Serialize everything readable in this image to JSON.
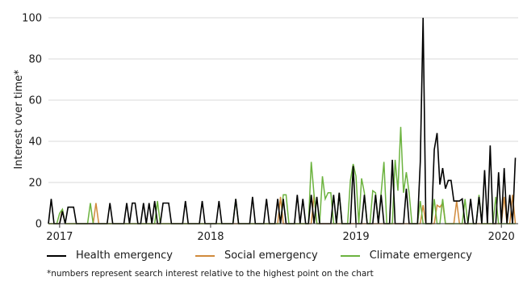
{
  "chart_data": {
    "type": "line",
    "ylabel": "Interest over time*",
    "xlabel": "",
    "ylim": [
      0,
      100
    ],
    "yticks": [
      0,
      20,
      40,
      60,
      80,
      100
    ],
    "xlim": [
      "2016-11-27",
      "2020-02-16"
    ],
    "xticks": [
      {
        "label": "2017",
        "date": "2016-12-25"
      },
      {
        "label": "2018",
        "date": "2018-01-07"
      },
      {
        "label": "2019",
        "date": "2019-01-06"
      },
      {
        "label": "2020",
        "date": "2020-01-05"
      }
    ],
    "grid": "horizontal",
    "legend_position": "bottom",
    "series": [
      {
        "name": "Health emergency",
        "color": "#000000",
        "points": [
          [
            "2016-11-27",
            0
          ],
          [
            "2016-12-04",
            12
          ],
          [
            "2016-12-11",
            0
          ],
          [
            "2016-12-18",
            0
          ],
          [
            "2016-12-25",
            0
          ],
          [
            "2017-01-01",
            6
          ],
          [
            "2017-01-08",
            0
          ],
          [
            "2017-01-15",
            8
          ],
          [
            "2017-01-22",
            8
          ],
          [
            "2017-01-29",
            8
          ],
          [
            "2017-02-05",
            0
          ],
          [
            "2017-02-12",
            0
          ],
          [
            "2017-02-19",
            0
          ],
          [
            "2017-02-26",
            0
          ],
          [
            "2017-03-05",
            0
          ],
          [
            "2017-03-12",
            0
          ],
          [
            "2017-03-19",
            0
          ],
          [
            "2017-03-26",
            0
          ],
          [
            "2017-04-02",
            0
          ],
          [
            "2017-04-09",
            0
          ],
          [
            "2017-04-16",
            0
          ],
          [
            "2017-04-23",
            0
          ],
          [
            "2017-04-30",
            10
          ],
          [
            "2017-05-07",
            0
          ],
          [
            "2017-05-14",
            0
          ],
          [
            "2017-05-21",
            0
          ],
          [
            "2017-05-28",
            0
          ],
          [
            "2017-06-04",
            0
          ],
          [
            "2017-06-11",
            10
          ],
          [
            "2017-06-18",
            0
          ],
          [
            "2017-06-25",
            10
          ],
          [
            "2017-07-02",
            10
          ],
          [
            "2017-07-09",
            0
          ],
          [
            "2017-07-16",
            0
          ],
          [
            "2017-07-23",
            10
          ],
          [
            "2017-07-30",
            0
          ],
          [
            "2017-08-06",
            10
          ],
          [
            "2017-08-13",
            0
          ],
          [
            "2017-08-20",
            11
          ],
          [
            "2017-08-27",
            0
          ],
          [
            "2017-09-03",
            0
          ],
          [
            "2017-09-10",
            10
          ],
          [
            "2017-09-17",
            10
          ],
          [
            "2017-09-24",
            10
          ],
          [
            "2017-10-01",
            0
          ],
          [
            "2017-10-08",
            0
          ],
          [
            "2017-10-15",
            0
          ],
          [
            "2017-10-22",
            0
          ],
          [
            "2017-10-29",
            0
          ],
          [
            "2017-11-05",
            11
          ],
          [
            "2017-11-12",
            0
          ],
          [
            "2017-11-19",
            0
          ],
          [
            "2017-11-26",
            0
          ],
          [
            "2017-12-03",
            0
          ],
          [
            "2017-12-10",
            0
          ],
          [
            "2017-12-17",
            11
          ],
          [
            "2017-12-24",
            0
          ],
          [
            "2017-12-31",
            0
          ],
          [
            "2018-01-07",
            0
          ],
          [
            "2018-01-14",
            0
          ],
          [
            "2018-01-21",
            0
          ],
          [
            "2018-01-28",
            11
          ],
          [
            "2018-02-04",
            0
          ],
          [
            "2018-02-11",
            0
          ],
          [
            "2018-02-18",
            0
          ],
          [
            "2018-02-25",
            0
          ],
          [
            "2018-03-04",
            0
          ],
          [
            "2018-03-11",
            12
          ],
          [
            "2018-03-18",
            0
          ],
          [
            "2018-03-25",
            0
          ],
          [
            "2018-04-01",
            0
          ],
          [
            "2018-04-08",
            0
          ],
          [
            "2018-04-15",
            0
          ],
          [
            "2018-04-22",
            13
          ],
          [
            "2018-04-29",
            0
          ],
          [
            "2018-05-06",
            0
          ],
          [
            "2018-05-13",
            0
          ],
          [
            "2018-05-20",
            0
          ],
          [
            "2018-05-27",
            12
          ],
          [
            "2018-06-03",
            0
          ],
          [
            "2018-06-10",
            0
          ],
          [
            "2018-06-17",
            0
          ],
          [
            "2018-06-24",
            12
          ],
          [
            "2018-07-01",
            0
          ],
          [
            "2018-07-08",
            12
          ],
          [
            "2018-07-15",
            0
          ],
          [
            "2018-07-22",
            0
          ],
          [
            "2018-07-29",
            0
          ],
          [
            "2018-08-05",
            0
          ],
          [
            "2018-08-12",
            14
          ],
          [
            "2018-08-19",
            0
          ],
          [
            "2018-08-26",
            12
          ],
          [
            "2018-09-02",
            0
          ],
          [
            "2018-09-09",
            0
          ],
          [
            "2018-09-16",
            14
          ],
          [
            "2018-09-23",
            0
          ],
          [
            "2018-09-30",
            13
          ],
          [
            "2018-10-07",
            0
          ],
          [
            "2018-10-14",
            0
          ],
          [
            "2018-10-21",
            0
          ],
          [
            "2018-10-28",
            0
          ],
          [
            "2018-11-04",
            0
          ],
          [
            "2018-11-11",
            14
          ],
          [
            "2018-11-18",
            0
          ],
          [
            "2018-11-25",
            15
          ],
          [
            "2018-12-02",
            0
          ],
          [
            "2018-12-09",
            0
          ],
          [
            "2018-12-16",
            0
          ],
          [
            "2018-12-23",
            0
          ],
          [
            "2018-12-30",
            28
          ],
          [
            "2019-01-06",
            0
          ],
          [
            "2019-01-13",
            0
          ],
          [
            "2019-01-20",
            0
          ],
          [
            "2019-01-27",
            14
          ],
          [
            "2019-02-03",
            0
          ],
          [
            "2019-02-10",
            0
          ],
          [
            "2019-02-17",
            0
          ],
          [
            "2019-02-24",
            14
          ],
          [
            "2019-03-03",
            0
          ],
          [
            "2019-03-10",
            14
          ],
          [
            "2019-03-17",
            0
          ],
          [
            "2019-03-24",
            0
          ],
          [
            "2019-03-31",
            0
          ],
          [
            "2019-04-07",
            31
          ],
          [
            "2019-04-14",
            0
          ],
          [
            "2019-04-21",
            0
          ],
          [
            "2019-04-28",
            0
          ],
          [
            "2019-05-05",
            0
          ],
          [
            "2019-05-12",
            17
          ],
          [
            "2019-05-19",
            0
          ],
          [
            "2019-05-26",
            0
          ],
          [
            "2019-06-02",
            0
          ],
          [
            "2019-06-09",
            0
          ],
          [
            "2019-06-16",
            30
          ],
          [
            "2019-06-23",
            100
          ],
          [
            "2019-06-30",
            0
          ],
          [
            "2019-07-07",
            0
          ],
          [
            "2019-07-14",
            0
          ],
          [
            "2019-07-21",
            36
          ],
          [
            "2019-07-28",
            44
          ],
          [
            "2019-08-04",
            19
          ],
          [
            "2019-08-11",
            27
          ],
          [
            "2019-08-18",
            17
          ],
          [
            "2019-08-25",
            21
          ],
          [
            "2019-09-01",
            21
          ],
          [
            "2019-09-08",
            11
          ],
          [
            "2019-09-15",
            11
          ],
          [
            "2019-09-22",
            11
          ],
          [
            "2019-09-29",
            12
          ],
          [
            "2019-10-06",
            0
          ],
          [
            "2019-10-13",
            0
          ],
          [
            "2019-10-20",
            12
          ],
          [
            "2019-10-27",
            0
          ],
          [
            "2019-11-03",
            0
          ],
          [
            "2019-11-10",
            13
          ],
          [
            "2019-11-17",
            0
          ],
          [
            "2019-11-24",
            26
          ],
          [
            "2019-12-01",
            0
          ],
          [
            "2019-12-08",
            38
          ],
          [
            "2019-12-15",
            0
          ],
          [
            "2019-12-22",
            0
          ],
          [
            "2019-12-29",
            25
          ],
          [
            "2020-01-05",
            0
          ],
          [
            "2020-01-12",
            27
          ],
          [
            "2020-01-19",
            0
          ],
          [
            "2020-01-26",
            14
          ],
          [
            "2020-02-02",
            0
          ],
          [
            "2020-02-09",
            32
          ]
        ]
      },
      {
        "name": "Social emergency",
        "color": "#d08a3c",
        "points": [
          [
            "2016-11-27",
            0
          ],
          [
            "2016-12-25",
            0
          ],
          [
            "2017-01-01",
            7
          ],
          [
            "2017-01-08",
            0
          ],
          [
            "2017-03-19",
            0
          ],
          [
            "2017-03-26",
            10
          ],
          [
            "2017-04-02",
            0
          ],
          [
            "2018-06-24",
            0
          ],
          [
            "2018-07-01",
            13
          ],
          [
            "2018-07-08",
            0
          ],
          [
            "2018-09-16",
            0
          ],
          [
            "2018-09-23",
            14
          ],
          [
            "2018-09-30",
            0
          ],
          [
            "2019-06-16",
            0
          ],
          [
            "2019-06-23",
            9
          ],
          [
            "2019-06-30",
            0
          ],
          [
            "2019-07-21",
            0
          ],
          [
            "2019-07-28",
            9
          ],
          [
            "2019-08-04",
            8
          ],
          [
            "2019-08-11",
            10
          ],
          [
            "2019-08-18",
            0
          ],
          [
            "2019-09-08",
            0
          ],
          [
            "2019-09-15",
            11
          ],
          [
            "2019-09-22",
            0
          ],
          [
            "2020-01-05",
            0
          ],
          [
            "2020-01-12",
            13
          ],
          [
            "2020-01-19",
            0
          ],
          [
            "2020-01-26",
            0
          ],
          [
            "2020-02-02",
            14
          ],
          [
            "2020-02-09",
            0
          ]
        ]
      },
      {
        "name": "Climate emergency",
        "color": "#6cb33f",
        "points": [
          [
            "2016-11-27",
            0
          ],
          [
            "2016-12-18",
            0
          ],
          [
            "2016-12-25",
            5
          ],
          [
            "2017-01-01",
            7
          ],
          [
            "2017-01-08",
            0
          ],
          [
            "2017-03-05",
            0
          ],
          [
            "2017-03-12",
            10
          ],
          [
            "2017-03-19",
            0
          ],
          [
            "2017-08-20",
            0
          ],
          [
            "2017-08-27",
            11
          ],
          [
            "2017-09-03",
            0
          ],
          [
            "2018-03-04",
            0
          ],
          [
            "2018-03-11",
            12
          ],
          [
            "2018-03-18",
            0
          ],
          [
            "2018-07-01",
            0
          ],
          [
            "2018-07-08",
            14
          ],
          [
            "2018-07-15",
            14
          ],
          [
            "2018-07-22",
            0
          ],
          [
            "2018-09-09",
            0
          ],
          [
            "2018-09-16",
            30
          ],
          [
            "2018-09-23",
            14
          ],
          [
            "2018-09-30",
            0
          ],
          [
            "2018-10-07",
            0
          ],
          [
            "2018-10-14",
            23
          ],
          [
            "2018-10-21",
            12
          ],
          [
            "2018-10-28",
            15
          ],
          [
            "2018-11-04",
            15
          ],
          [
            "2018-11-11",
            0
          ],
          [
            "2018-11-18",
            0
          ],
          [
            "2018-11-25",
            15
          ],
          [
            "2018-12-02",
            0
          ],
          [
            "2018-12-09",
            0
          ],
          [
            "2018-12-16",
            0
          ],
          [
            "2018-12-23",
            21
          ],
          [
            "2018-12-30",
            29
          ],
          [
            "2019-01-06",
            23
          ],
          [
            "2019-01-13",
            0
          ],
          [
            "2019-01-20",
            22
          ],
          [
            "2019-01-27",
            15
          ],
          [
            "2019-02-03",
            0
          ],
          [
            "2019-02-10",
            0
          ],
          [
            "2019-02-17",
            16
          ],
          [
            "2019-02-24",
            15
          ],
          [
            "2019-03-03",
            0
          ],
          [
            "2019-03-10",
            15
          ],
          [
            "2019-03-17",
            30
          ],
          [
            "2019-03-24",
            0
          ],
          [
            "2019-03-31",
            0
          ],
          [
            "2019-04-07",
            0
          ],
          [
            "2019-04-14",
            31
          ],
          [
            "2019-04-21",
            16
          ],
          [
            "2019-04-28",
            47
          ],
          [
            "2019-05-05",
            15
          ],
          [
            "2019-05-12",
            25
          ],
          [
            "2019-05-19",
            15
          ],
          [
            "2019-05-26",
            0
          ],
          [
            "2019-06-02",
            0
          ],
          [
            "2019-06-09",
            0
          ],
          [
            "2019-06-16",
            11
          ],
          [
            "2019-06-23",
            0
          ],
          [
            "2019-06-30",
            0
          ],
          [
            "2019-07-07",
            0
          ],
          [
            "2019-07-14",
            0
          ],
          [
            "2019-07-21",
            12
          ],
          [
            "2019-07-28",
            0
          ],
          [
            "2019-08-04",
            0
          ],
          [
            "2019-08-11",
            12
          ],
          [
            "2019-08-18",
            0
          ],
          [
            "2019-09-29",
            0
          ],
          [
            "2019-10-06",
            12
          ],
          [
            "2019-10-13",
            0
          ],
          [
            "2019-11-03",
            0
          ],
          [
            "2019-11-10",
            14
          ],
          [
            "2019-11-17",
            0
          ],
          [
            "2019-12-15",
            0
          ],
          [
            "2019-12-22",
            13
          ],
          [
            "2019-12-29",
            0
          ],
          [
            "2020-02-09",
            0
          ]
        ]
      }
    ]
  },
  "footnote": "*numbers represent search interest relative to the highest point on the chart"
}
